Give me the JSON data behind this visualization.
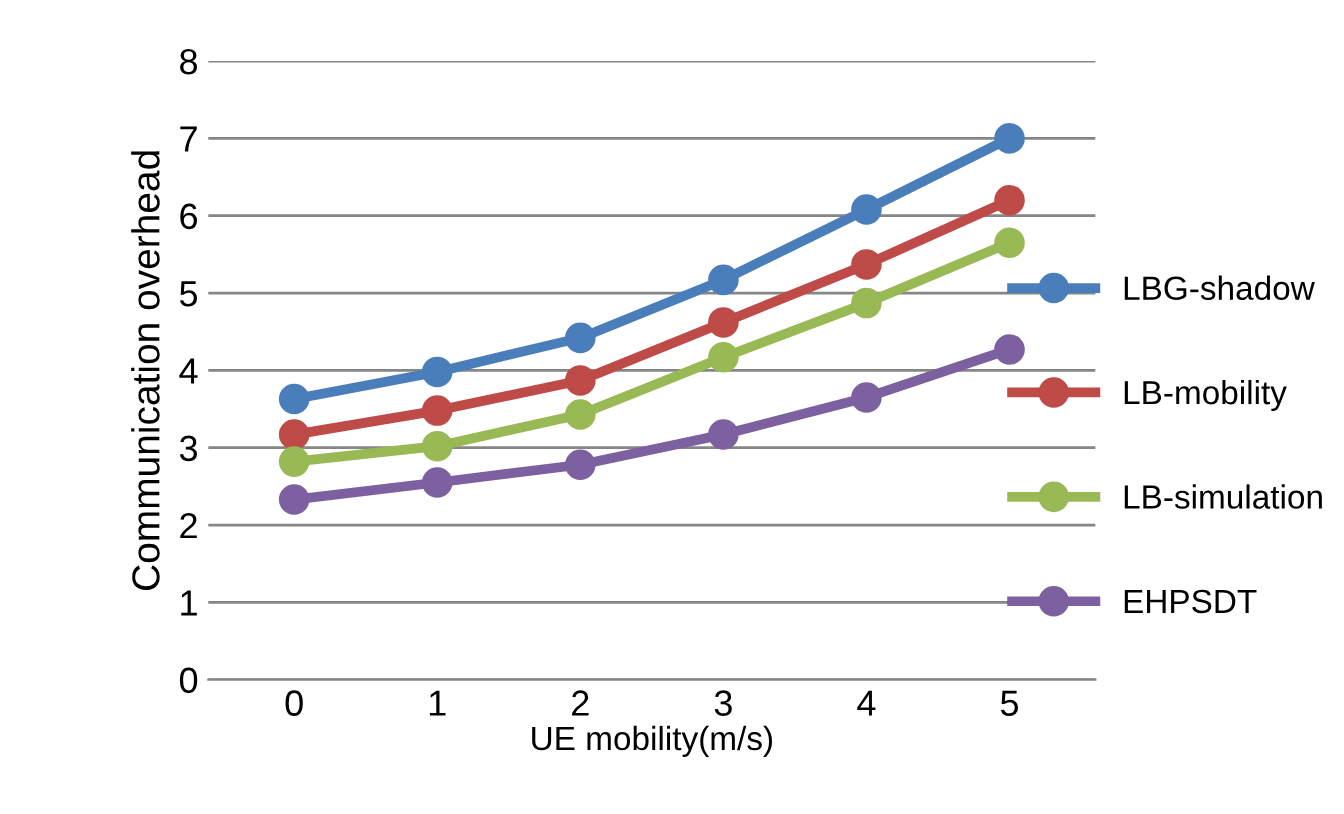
{
  "chart_data": {
    "type": "line",
    "xlabel": "UE mobility(m/s)",
    "ylabel": "Communication overhead",
    "categories": [
      "0",
      "1",
      "2",
      "3",
      "4",
      "5"
    ],
    "series": [
      {
        "name": "LBG-shadow",
        "color": "#4a7ebb",
        "values": [
          3.63,
          3.98,
          4.42,
          5.17,
          6.08,
          7.0
        ]
      },
      {
        "name": "LB-mobility",
        "color": "#be4b48",
        "values": [
          3.17,
          3.48,
          3.87,
          4.62,
          5.37,
          6.2
        ]
      },
      {
        "name": "LB-simulation",
        "color": "#98b954",
        "values": [
          2.82,
          3.02,
          3.43,
          4.17,
          4.87,
          5.65
        ]
      },
      {
        "name": "EHPSDT",
        "color": "#7d60a0",
        "values": [
          2.33,
          2.55,
          2.78,
          3.17,
          3.65,
          4.27
        ]
      }
    ],
    "ylim": [
      0,
      8
    ],
    "yticks": [
      0,
      1,
      2,
      3,
      4,
      5,
      6,
      7,
      8
    ],
    "grid": "y",
    "legend": "right",
    "marker": "circle",
    "line_style": "solid"
  }
}
